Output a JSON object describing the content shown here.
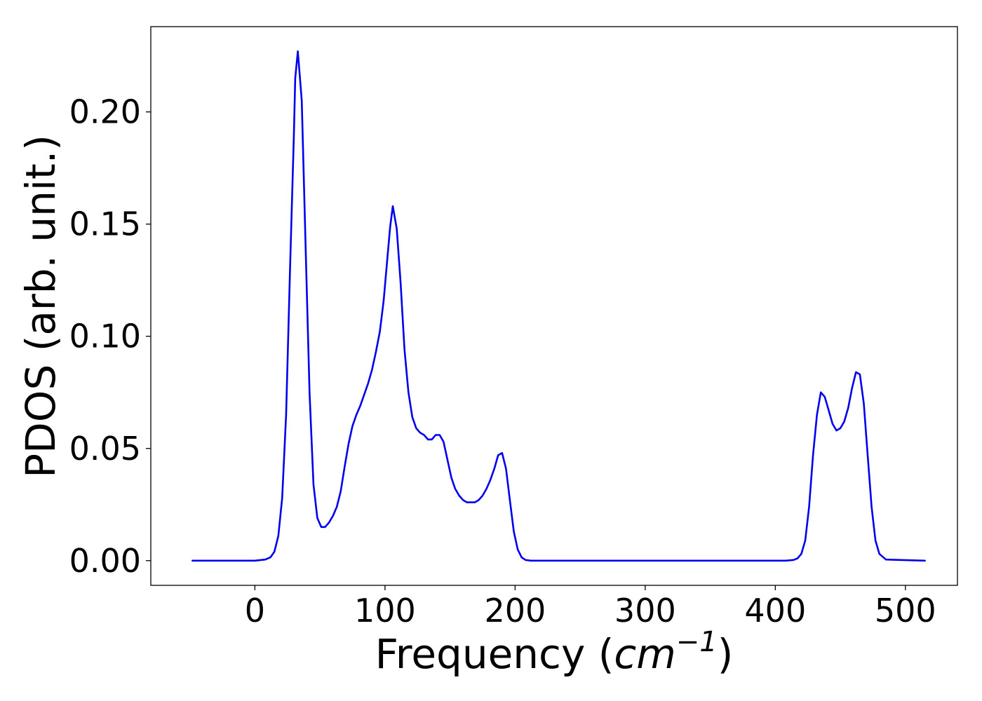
{
  "chart_data": {
    "type": "line",
    "title": "",
    "xlabel": "Frequency (cm⁻¹)",
    "xlabel_parts": {
      "prefix": "Frequency (",
      "var": "cm",
      "sup": "−1",
      "suffix": ")"
    },
    "ylabel": "PDOS (arb. unit.)",
    "xlim": [
      -80,
      540
    ],
    "ylim": [
      -0.011,
      0.238
    ],
    "xticks": [
      0,
      100,
      200,
      300,
      400,
      500
    ],
    "xtick_labels": [
      "0",
      "100",
      "200",
      "300",
      "400",
      "500"
    ],
    "yticks": [
      0.0,
      0.05,
      0.1,
      0.15,
      0.2
    ],
    "ytick_labels": [
      "0.00",
      "0.05",
      "0.10",
      "0.15",
      "0.20"
    ],
    "grid": false,
    "legend": "none",
    "line_color": "#0000ee",
    "series": [
      {
        "x": [
          -48,
          0,
          8,
          12,
          15,
          18,
          21,
          24,
          27,
          30,
          31,
          33,
          36,
          39,
          42,
          45,
          48,
          51,
          54,
          57,
          60,
          63,
          66,
          69,
          72,
          75,
          78,
          81,
          84,
          87,
          90,
          93,
          96,
          99,
          102,
          104,
          106,
          109,
          112,
          115,
          118,
          121,
          124,
          127,
          130,
          133,
          136,
          139,
          142,
          145,
          148,
          151,
          154,
          157,
          160,
          163,
          166,
          169,
          172,
          175,
          178,
          181,
          184,
          187,
          190,
          193,
          196,
          199,
          202,
          205,
          208,
          212,
          220,
          300,
          408,
          414,
          417,
          420,
          423,
          426,
          429,
          432,
          435,
          438,
          441,
          444,
          447,
          450,
          453,
          456,
          459,
          462,
          465,
          468,
          471,
          474,
          477,
          480,
          485,
          515
        ],
        "y": [
          0.0,
          0.0,
          0.0005,
          0.0015,
          0.004,
          0.011,
          0.028,
          0.065,
          0.13,
          0.19,
          0.215,
          0.227,
          0.205,
          0.14,
          0.075,
          0.034,
          0.019,
          0.015,
          0.015,
          0.017,
          0.02,
          0.024,
          0.031,
          0.042,
          0.052,
          0.06,
          0.065,
          0.069,
          0.074,
          0.079,
          0.085,
          0.093,
          0.102,
          0.116,
          0.136,
          0.149,
          0.158,
          0.148,
          0.124,
          0.094,
          0.075,
          0.064,
          0.059,
          0.057,
          0.056,
          0.054,
          0.054,
          0.056,
          0.056,
          0.053,
          0.045,
          0.037,
          0.032,
          0.029,
          0.027,
          0.026,
          0.026,
          0.026,
          0.027,
          0.029,
          0.032,
          0.036,
          0.041,
          0.047,
          0.048,
          0.041,
          0.027,
          0.013,
          0.005,
          0.0015,
          0.0003,
          0.0,
          0.0,
          0.0,
          0.0,
          0.0003,
          0.001,
          0.003,
          0.009,
          0.024,
          0.047,
          0.065,
          0.075,
          0.073,
          0.067,
          0.061,
          0.058,
          0.059,
          0.062,
          0.068,
          0.077,
          0.084,
          0.083,
          0.07,
          0.047,
          0.024,
          0.009,
          0.003,
          0.0005,
          0.0
        ]
      }
    ]
  }
}
